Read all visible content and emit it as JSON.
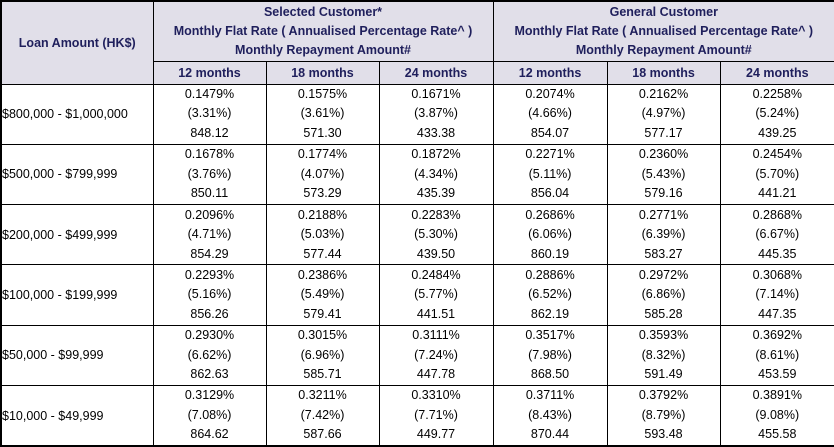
{
  "table": {
    "loan_amount_header": "Loan Amount (HK$)",
    "groups": [
      {
        "title": "Selected Customer*",
        "subtitle_rate": "Monthly Flat Rate ( Annualised Percentage Rate^ )",
        "subtitle_repayment": "Monthly Repayment Amount#"
      },
      {
        "title": "General Customer",
        "subtitle_rate": "Monthly Flat Rate ( Annualised Percentage Rate^ )",
        "subtitle_repayment": "Monthly Repayment Amount#"
      }
    ],
    "month_headers": [
      "12 months",
      "18 months",
      "24 months",
      "12 months",
      "18 months",
      "24 months"
    ],
    "rows": [
      {
        "loan_amount": "$800,000 - $1,000,000",
        "cells": [
          {
            "flat": "0.1479%",
            "apr": "(3.31%)",
            "repay": "848.12"
          },
          {
            "flat": "0.1575%",
            "apr": "(3.61%)",
            "repay": "571.30"
          },
          {
            "flat": "0.1671%",
            "apr": "(3.87%)",
            "repay": "433.38"
          },
          {
            "flat": "0.2074%",
            "apr": "(4.66%)",
            "repay": "854.07"
          },
          {
            "flat": "0.2162%",
            "apr": "(4.97%)",
            "repay": "577.17"
          },
          {
            "flat": "0.2258%",
            "apr": "(5.24%)",
            "repay": "439.25"
          }
        ]
      },
      {
        "loan_amount": "$500,000 - $799,999",
        "cells": [
          {
            "flat": "0.1678%",
            "apr": "(3.76%)",
            "repay": "850.11"
          },
          {
            "flat": "0.1774%",
            "apr": "(4.07%)",
            "repay": "573.29"
          },
          {
            "flat": "0.1872%",
            "apr": "(4.34%)",
            "repay": "435.39"
          },
          {
            "flat": "0.2271%",
            "apr": "(5.11%)",
            "repay": "856.04"
          },
          {
            "flat": "0.2360%",
            "apr": "(5.43%)",
            "repay": "579.16"
          },
          {
            "flat": "0.2454%",
            "apr": "(5.70%)",
            "repay": "441.21"
          }
        ]
      },
      {
        "loan_amount": "$200,000 - $499,999",
        "cells": [
          {
            "flat": "0.2096%",
            "apr": "(4.71%)",
            "repay": "854.29"
          },
          {
            "flat": "0.2188%",
            "apr": "(5.03%)",
            "repay": "577.44"
          },
          {
            "flat": "0.2283%",
            "apr": "(5.30%)",
            "repay": "439.50"
          },
          {
            "flat": "0.2686%",
            "apr": "(6.06%)",
            "repay": "860.19"
          },
          {
            "flat": "0.2771%",
            "apr": "(6.39%)",
            "repay": "583.27"
          },
          {
            "flat": "0.2868%",
            "apr": "(6.67%)",
            "repay": "445.35"
          }
        ]
      },
      {
        "loan_amount": "$100,000 - $199,999",
        "cells": [
          {
            "flat": "0.2293%",
            "apr": "(5.16%)",
            "repay": "856.26"
          },
          {
            "flat": "0.2386%",
            "apr": "(5.49%)",
            "repay": "579.41"
          },
          {
            "flat": "0.2484%",
            "apr": "(5.77%)",
            "repay": "441.51"
          },
          {
            "flat": "0.2886%",
            "apr": "(6.52%)",
            "repay": "862.19"
          },
          {
            "flat": "0.2972%",
            "apr": "(6.86%)",
            "repay": "585.28"
          },
          {
            "flat": "0.3068%",
            "apr": "(7.14%)",
            "repay": "447.35"
          }
        ]
      },
      {
        "loan_amount": "$50,000 - $99,999",
        "cells": [
          {
            "flat": "0.2930%",
            "apr": "(6.62%)",
            "repay": "862.63"
          },
          {
            "flat": "0.3015%",
            "apr": "(6.96%)",
            "repay": "585.71"
          },
          {
            "flat": "0.3111%",
            "apr": "(7.24%)",
            "repay": "447.78"
          },
          {
            "flat": "0.3517%",
            "apr": "(7.98%)",
            "repay": "868.50"
          },
          {
            "flat": "0.3593%",
            "apr": "(8.32%)",
            "repay": "591.49"
          },
          {
            "flat": "0.3692%",
            "apr": "(8.61%)",
            "repay": "453.59"
          }
        ]
      },
      {
        "loan_amount": "$10,000 - $49,999",
        "cells": [
          {
            "flat": "0.3129%",
            "apr": "(7.08%)",
            "repay": "864.62"
          },
          {
            "flat": "0.3211%",
            "apr": "(7.42%)",
            "repay": "587.66"
          },
          {
            "flat": "0.3310%",
            "apr": "(7.71%)",
            "repay": "449.77"
          },
          {
            "flat": "0.3711%",
            "apr": "(8.43%)",
            "repay": "870.44"
          },
          {
            "flat": "0.3792%",
            "apr": "(8.79%)",
            "repay": "593.48"
          },
          {
            "flat": "0.3891%",
            "apr": "(9.08%)",
            "repay": "455.58"
          }
        ]
      }
    ]
  },
  "colors": {
    "header_bg": "#e1dfe9",
    "header_text": "#1f1f5c",
    "data_text": "#000000",
    "border": "#000000"
  }
}
